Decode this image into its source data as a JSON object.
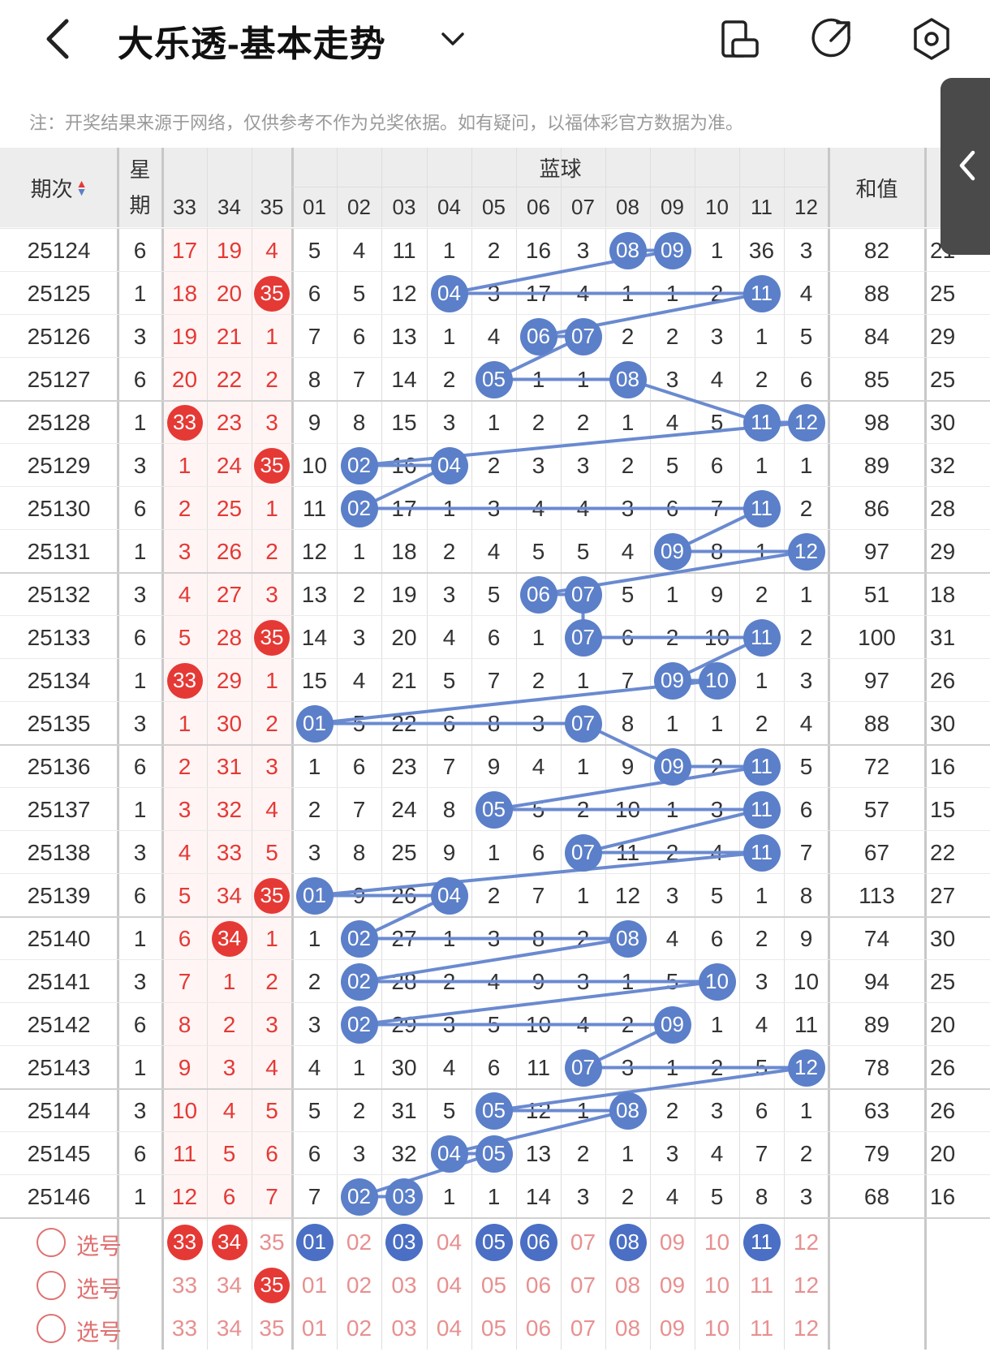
{
  "header": {
    "title": "大乐透-基本走势",
    "note": "注：开奖结果来源于网络，仅供参考不作为兑奖依据。如有疑问，以福体彩官方数据为准。"
  },
  "table_header": {
    "period": "期次",
    "weekday": "星期",
    "blue_group": "蓝球",
    "sum": "和值",
    "red_cols": [
      "33",
      "34",
      "35"
    ],
    "blue_cols": [
      "01",
      "02",
      "03",
      "04",
      "05",
      "06",
      "07",
      "08",
      "09",
      "10",
      "11",
      "12"
    ]
  },
  "rows": [
    {
      "period": "25124",
      "weekday": "6",
      "red": [
        "17",
        "19",
        "4"
      ],
      "red_hit": -1,
      "blue": [
        "5",
        "4",
        "11",
        "1",
        "2",
        "16",
        "3",
        "08",
        "09",
        "1",
        "36",
        "3"
      ],
      "blue_hits": [
        7,
        8
      ],
      "sum": "82",
      "extra": "21"
    },
    {
      "period": "25125",
      "weekday": "1",
      "red": [
        "18",
        "20",
        "35"
      ],
      "red_hit": 2,
      "blue": [
        "6",
        "5",
        "12",
        "04",
        "3",
        "17",
        "4",
        "1",
        "1",
        "2",
        "11",
        "4"
      ],
      "blue_hits": [
        3,
        10
      ],
      "sum": "88",
      "extra": "25"
    },
    {
      "period": "25126",
      "weekday": "3",
      "red": [
        "19",
        "21",
        "1"
      ],
      "red_hit": -1,
      "blue": [
        "7",
        "6",
        "13",
        "1",
        "4",
        "06",
        "07",
        "2",
        "2",
        "3",
        "1",
        "5"
      ],
      "blue_hits": [
        5,
        6
      ],
      "sum": "84",
      "extra": "29"
    },
    {
      "period": "25127",
      "weekday": "6",
      "red": [
        "20",
        "22",
        "2"
      ],
      "red_hit": -1,
      "blue": [
        "8",
        "7",
        "14",
        "2",
        "05",
        "1",
        "1",
        "08",
        "3",
        "4",
        "2",
        "6"
      ],
      "blue_hits": [
        4,
        7
      ],
      "sum": "85",
      "extra": "25"
    },
    {
      "period": "25128",
      "weekday": "1",
      "red": [
        "33",
        "23",
        "3"
      ],
      "red_hit": 0,
      "blue": [
        "9",
        "8",
        "15",
        "3",
        "1",
        "2",
        "2",
        "1",
        "4",
        "5",
        "11",
        "12"
      ],
      "blue_hits": [
        10,
        11
      ],
      "sum": "98",
      "extra": "30"
    },
    {
      "period": "25129",
      "weekday": "3",
      "red": [
        "1",
        "24",
        "35"
      ],
      "red_hit": 2,
      "blue": [
        "10",
        "02",
        "16",
        "04",
        "2",
        "3",
        "3",
        "2",
        "5",
        "6",
        "1",
        "1"
      ],
      "blue_hits": [
        1,
        3
      ],
      "sum": "89",
      "extra": "32"
    },
    {
      "period": "25130",
      "weekday": "6",
      "red": [
        "2",
        "25",
        "1"
      ],
      "red_hit": -1,
      "blue": [
        "11",
        "02",
        "17",
        "1",
        "3",
        "4",
        "4",
        "3",
        "6",
        "7",
        "11",
        "2"
      ],
      "blue_hits": [
        1,
        10
      ],
      "sum": "86",
      "extra": "28"
    },
    {
      "period": "25131",
      "weekday": "1",
      "red": [
        "3",
        "26",
        "2"
      ],
      "red_hit": -1,
      "blue": [
        "12",
        "1",
        "18",
        "2",
        "4",
        "5",
        "5",
        "4",
        "09",
        "8",
        "1",
        "12"
      ],
      "blue_hits": [
        8,
        11
      ],
      "sum": "97",
      "extra": "29"
    },
    {
      "period": "25132",
      "weekday": "3",
      "red": [
        "4",
        "27",
        "3"
      ],
      "red_hit": -1,
      "blue": [
        "13",
        "2",
        "19",
        "3",
        "5",
        "06",
        "07",
        "5",
        "1",
        "9",
        "2",
        "1"
      ],
      "blue_hits": [
        5,
        6
      ],
      "sum": "51",
      "extra": "18"
    },
    {
      "period": "25133",
      "weekday": "6",
      "red": [
        "5",
        "28",
        "35"
      ],
      "red_hit": 2,
      "blue": [
        "14",
        "3",
        "20",
        "4",
        "6",
        "1",
        "07",
        "6",
        "2",
        "10",
        "11",
        "2"
      ],
      "blue_hits": [
        6,
        10
      ],
      "sum": "100",
      "extra": "31"
    },
    {
      "period": "25134",
      "weekday": "1",
      "red": [
        "33",
        "29",
        "1"
      ],
      "red_hit": 0,
      "blue": [
        "15",
        "4",
        "21",
        "5",
        "7",
        "2",
        "1",
        "7",
        "09",
        "10",
        "1",
        "3"
      ],
      "blue_hits": [
        8,
        9
      ],
      "sum": "97",
      "extra": "26"
    },
    {
      "period": "25135",
      "weekday": "3",
      "red": [
        "1",
        "30",
        "2"
      ],
      "red_hit": -1,
      "blue": [
        "01",
        "5",
        "22",
        "6",
        "8",
        "3",
        "07",
        "8",
        "1",
        "1",
        "2",
        "4"
      ],
      "blue_hits": [
        0,
        6
      ],
      "sum": "88",
      "extra": "30"
    },
    {
      "period": "25136",
      "weekday": "6",
      "red": [
        "2",
        "31",
        "3"
      ],
      "red_hit": -1,
      "blue": [
        "1",
        "6",
        "23",
        "7",
        "9",
        "4",
        "1",
        "9",
        "09",
        "2",
        "11",
        "5"
      ],
      "blue_hits": [
        8,
        10
      ],
      "sum": "72",
      "extra": "16"
    },
    {
      "period": "25137",
      "weekday": "1",
      "red": [
        "3",
        "32",
        "4"
      ],
      "red_hit": -1,
      "blue": [
        "2",
        "7",
        "24",
        "8",
        "05",
        "5",
        "2",
        "10",
        "1",
        "3",
        "11",
        "6"
      ],
      "blue_hits": [
        4,
        10
      ],
      "sum": "57",
      "extra": "15"
    },
    {
      "period": "25138",
      "weekday": "3",
      "red": [
        "4",
        "33",
        "5"
      ],
      "red_hit": -1,
      "blue": [
        "3",
        "8",
        "25",
        "9",
        "1",
        "6",
        "07",
        "11",
        "2",
        "4",
        "11",
        "7"
      ],
      "blue_hits": [
        6,
        10
      ],
      "sum": "67",
      "extra": "22"
    },
    {
      "period": "25139",
      "weekday": "6",
      "red": [
        "5",
        "34",
        "35"
      ],
      "red_hit": 2,
      "blue": [
        "01",
        "9",
        "26",
        "04",
        "2",
        "7",
        "1",
        "12",
        "3",
        "5",
        "1",
        "8"
      ],
      "blue_hits": [
        0,
        3
      ],
      "sum": "113",
      "extra": "27"
    },
    {
      "period": "25140",
      "weekday": "1",
      "red": [
        "6",
        "34",
        "1"
      ],
      "red_hit": 1,
      "blue": [
        "1",
        "02",
        "27",
        "1",
        "3",
        "8",
        "2",
        "08",
        "4",
        "6",
        "2",
        "9"
      ],
      "blue_hits": [
        1,
        7
      ],
      "sum": "74",
      "extra": "30"
    },
    {
      "period": "25141",
      "weekday": "3",
      "red": [
        "7",
        "1",
        "2"
      ],
      "red_hit": -1,
      "blue": [
        "2",
        "02",
        "28",
        "2",
        "4",
        "9",
        "3",
        "1",
        "5",
        "10",
        "3",
        "10"
      ],
      "blue_hits": [
        1,
        9
      ],
      "sum": "94",
      "extra": "25"
    },
    {
      "period": "25142",
      "weekday": "6",
      "red": [
        "8",
        "2",
        "3"
      ],
      "red_hit": -1,
      "blue": [
        "3",
        "02",
        "29",
        "3",
        "5",
        "10",
        "4",
        "2",
        "09",
        "1",
        "4",
        "11"
      ],
      "blue_hits": [
        1,
        8
      ],
      "sum": "89",
      "extra": "20"
    },
    {
      "period": "25143",
      "weekday": "1",
      "red": [
        "9",
        "3",
        "4"
      ],
      "red_hit": -1,
      "blue": [
        "4",
        "1",
        "30",
        "4",
        "6",
        "11",
        "07",
        "3",
        "1",
        "2",
        "5",
        "12"
      ],
      "blue_hits": [
        6,
        11
      ],
      "sum": "78",
      "extra": "26"
    },
    {
      "period": "25144",
      "weekday": "3",
      "red": [
        "10",
        "4",
        "5"
      ],
      "red_hit": -1,
      "blue": [
        "5",
        "2",
        "31",
        "5",
        "05",
        "12",
        "1",
        "08",
        "2",
        "3",
        "6",
        "1"
      ],
      "blue_hits": [
        4,
        7
      ],
      "sum": "63",
      "extra": "26"
    },
    {
      "period": "25145",
      "weekday": "6",
      "red": [
        "11",
        "5",
        "6"
      ],
      "red_hit": -1,
      "blue": [
        "6",
        "3",
        "32",
        "04",
        "05",
        "13",
        "2",
        "1",
        "3",
        "4",
        "7",
        "2"
      ],
      "blue_hits": [
        3,
        4
      ],
      "sum": "79",
      "extra": "20"
    },
    {
      "period": "25146",
      "weekday": "1",
      "red": [
        "12",
        "6",
        "7"
      ],
      "red_hit": -1,
      "blue": [
        "7",
        "02",
        "03",
        "1",
        "1",
        "14",
        "3",
        "2",
        "4",
        "5",
        "8",
        "3"
      ],
      "blue_hits": [
        1,
        2
      ],
      "sum": "68",
      "extra": "16"
    }
  ],
  "pick_rows": [
    {
      "label": "选号",
      "red": [
        "33",
        "34",
        "35"
      ],
      "red_selected": [
        0,
        1
      ],
      "blue": [
        "01",
        "02",
        "03",
        "04",
        "05",
        "06",
        "07",
        "08",
        "09",
        "10",
        "11",
        "12"
      ],
      "blue_selected": [
        0,
        2,
        4,
        5,
        7,
        10
      ]
    },
    {
      "label": "选号",
      "red": [
        "33",
        "34",
        "35"
      ],
      "red_selected": [
        2
      ],
      "blue": [
        "01",
        "02",
        "03",
        "04",
        "05",
        "06",
        "07",
        "08",
        "09",
        "10",
        "11",
        "12"
      ],
      "blue_selected": []
    },
    {
      "label": "选号",
      "red": [
        "33",
        "34",
        "35"
      ],
      "red_selected": [],
      "blue": [
        "01",
        "02",
        "03",
        "04",
        "05",
        "06",
        "07",
        "08",
        "09",
        "10",
        "11",
        "12"
      ],
      "blue_selected": []
    }
  ],
  "colors": {
    "red": "#e53935",
    "blue": "#5b7fc9",
    "line": "#6a8ad0",
    "header_bg": "#ededed",
    "pick_bg": "#fdece8",
    "pick_text": "#e89090",
    "red_col_tint": "#fde8e6"
  }
}
